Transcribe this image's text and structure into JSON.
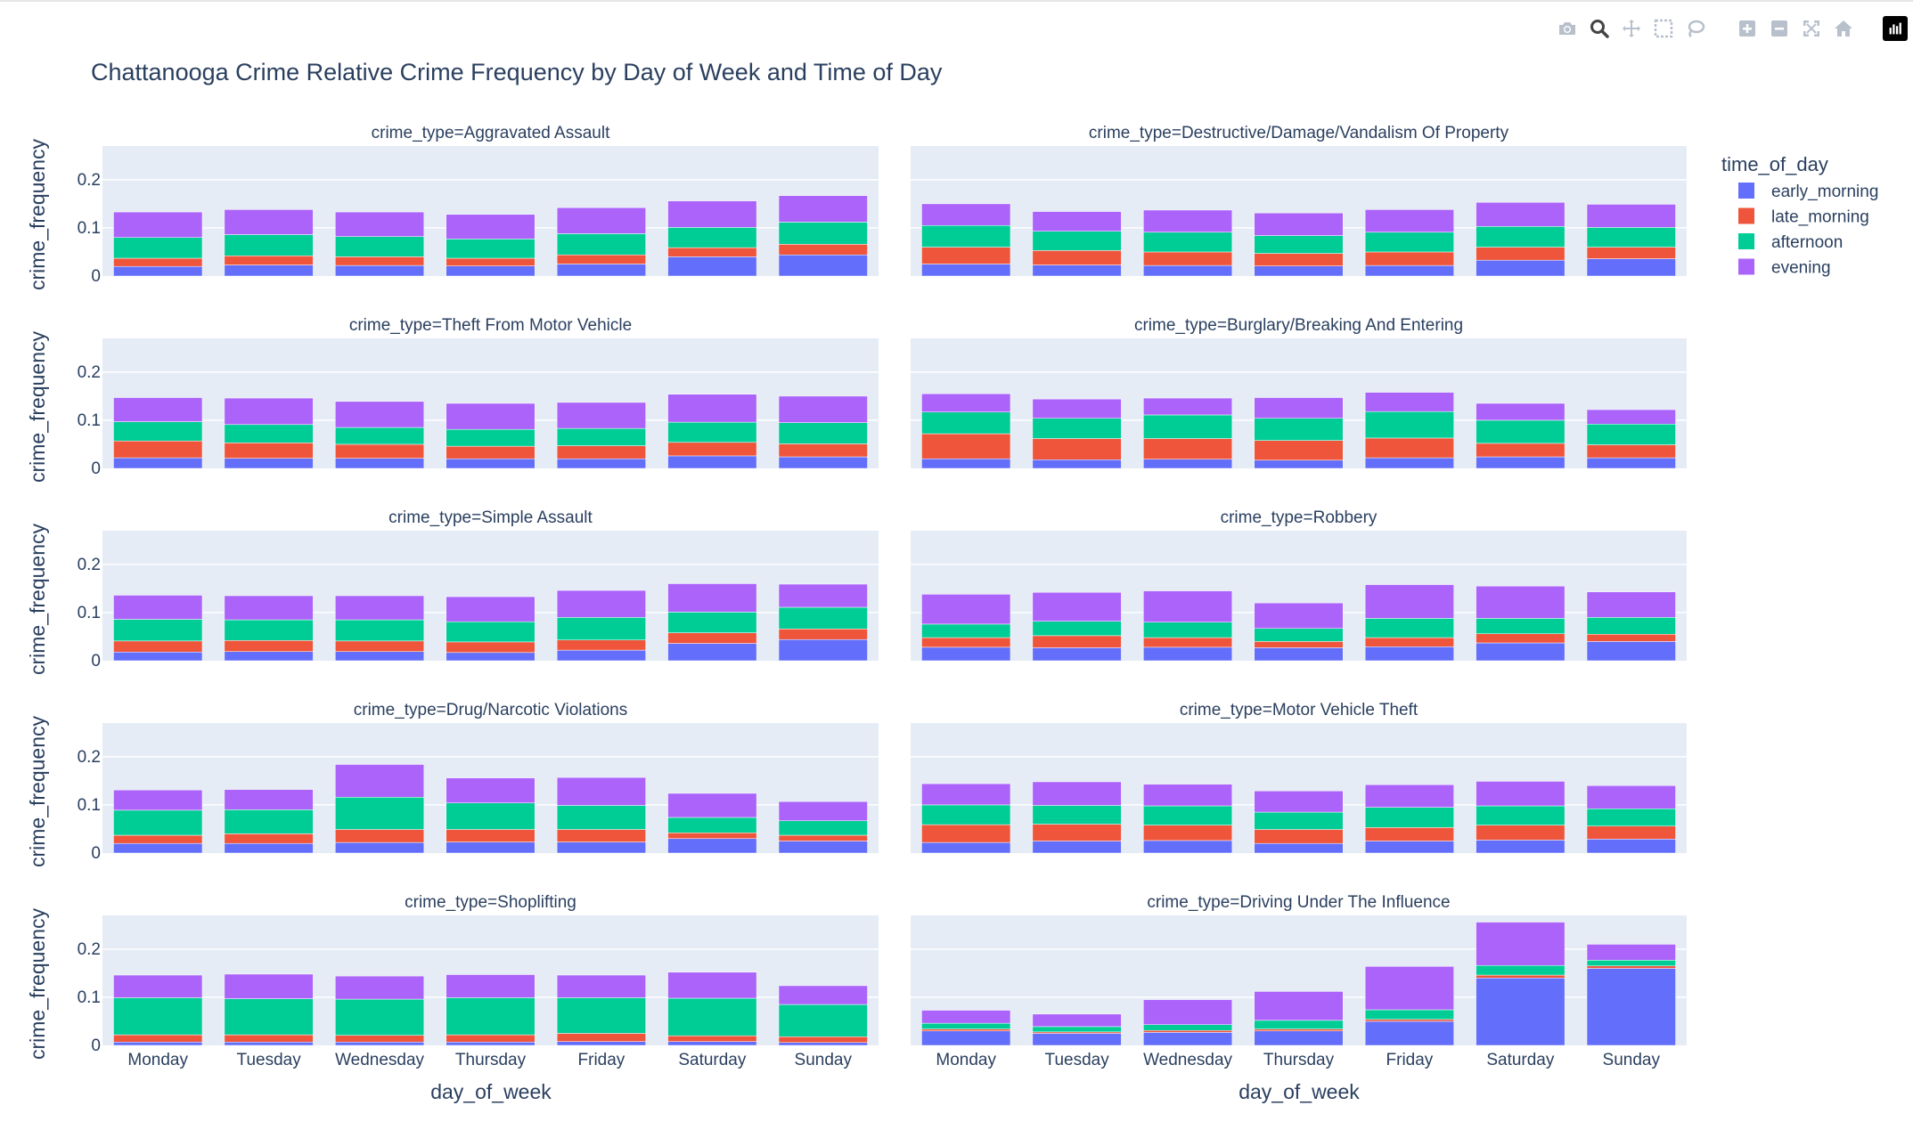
{
  "toolbar": {
    "buttons": [
      {
        "name": "camera-icon",
        "label": "Download plot as a png"
      },
      {
        "name": "zoom-icon",
        "label": "Zoom"
      },
      {
        "name": "pan-icon",
        "label": "Pan"
      },
      {
        "name": "box-select-icon",
        "label": "Box Select"
      },
      {
        "name": "lasso-select-icon",
        "label": "Lasso Select"
      },
      {
        "name": "zoom-in-icon",
        "label": "Zoom in"
      },
      {
        "name": "zoom-out-icon",
        "label": "Zoom out"
      },
      {
        "name": "autoscale-icon",
        "label": "Autoscale"
      },
      {
        "name": "reset-axes-icon",
        "label": "Reset axes"
      },
      {
        "name": "plotly-logo-icon",
        "label": "Produced with Plotly"
      }
    ],
    "active": "zoom-icon"
  },
  "chart_data": {
    "type": "bar",
    "barmode": "stack",
    "title": "Chattanooga Crime Relative Crime Frequency by Day of Week and Time of Day",
    "xlabel": "day_of_week",
    "ylabel": "crime_frequency",
    "ylim": [
      0,
      0.27
    ],
    "yticks": [
      0,
      0.1,
      0.2
    ],
    "ytick_labels": [
      "0",
      "0.1",
      "0.2"
    ],
    "grid": true,
    "plot_bgcolor": "#e5ecf6",
    "legend": {
      "title": "time_of_day",
      "position": "top-right"
    },
    "categories": [
      "Monday",
      "Tuesday",
      "Wednesday",
      "Thursday",
      "Friday",
      "Saturday",
      "Sunday"
    ],
    "series": [
      {
        "name": "early_morning",
        "color": "#636efa"
      },
      {
        "name": "late_morning",
        "color": "#ef553b"
      },
      {
        "name": "afternoon",
        "color": "#00cc96"
      },
      {
        "name": "evening",
        "color": "#ab63fa"
      }
    ],
    "facets": [
      {
        "title": "crime_type=Aggravated Assault",
        "values": [
          [
            0.02,
            0.023,
            0.022,
            0.021,
            0.025,
            0.04,
            0.044
          ],
          [
            0.017,
            0.019,
            0.018,
            0.016,
            0.019,
            0.019,
            0.022
          ],
          [
            0.043,
            0.044,
            0.042,
            0.04,
            0.044,
            0.042,
            0.046
          ],
          [
            0.053,
            0.052,
            0.051,
            0.051,
            0.054,
            0.055,
            0.055
          ]
        ]
      },
      {
        "title": "crime_type=Destructive/Damage/Vandalism Of Property",
        "values": [
          [
            0.025,
            0.023,
            0.022,
            0.021,
            0.022,
            0.033,
            0.036
          ],
          [
            0.035,
            0.03,
            0.028,
            0.026,
            0.028,
            0.027,
            0.024
          ],
          [
            0.045,
            0.04,
            0.041,
            0.037,
            0.041,
            0.043,
            0.041
          ],
          [
            0.045,
            0.041,
            0.046,
            0.047,
            0.047,
            0.05,
            0.048
          ]
        ]
      },
      {
        "title": "crime_type=Theft From Motor Vehicle",
        "values": [
          [
            0.022,
            0.021,
            0.021,
            0.02,
            0.02,
            0.026,
            0.024
          ],
          [
            0.035,
            0.032,
            0.029,
            0.026,
            0.027,
            0.028,
            0.027
          ],
          [
            0.04,
            0.038,
            0.035,
            0.035,
            0.036,
            0.042,
            0.044
          ],
          [
            0.05,
            0.055,
            0.054,
            0.054,
            0.054,
            0.058,
            0.055
          ]
        ]
      },
      {
        "title": "crime_type=Burglary/Breaking And Entering",
        "values": [
          [
            0.02,
            0.018,
            0.019,
            0.017,
            0.022,
            0.024,
            0.022
          ],
          [
            0.052,
            0.044,
            0.043,
            0.041,
            0.041,
            0.028,
            0.027
          ],
          [
            0.045,
            0.042,
            0.049,
            0.046,
            0.055,
            0.048,
            0.043
          ],
          [
            0.038,
            0.04,
            0.035,
            0.043,
            0.04,
            0.035,
            0.03
          ]
        ]
      },
      {
        "title": "crime_type=Simple Assault",
        "values": [
          [
            0.018,
            0.019,
            0.019,
            0.017,
            0.022,
            0.036,
            0.044
          ],
          [
            0.023,
            0.023,
            0.022,
            0.022,
            0.021,
            0.022,
            0.022
          ],
          [
            0.045,
            0.043,
            0.044,
            0.042,
            0.047,
            0.043,
            0.045
          ],
          [
            0.05,
            0.05,
            0.05,
            0.052,
            0.056,
            0.059,
            0.048
          ]
        ]
      },
      {
        "title": "crime_type=Robbery",
        "values": [
          [
            0.028,
            0.027,
            0.028,
            0.027,
            0.029,
            0.037,
            0.04
          ],
          [
            0.02,
            0.025,
            0.02,
            0.013,
            0.019,
            0.019,
            0.015
          ],
          [
            0.028,
            0.03,
            0.032,
            0.027,
            0.04,
            0.032,
            0.035
          ],
          [
            0.062,
            0.06,
            0.065,
            0.053,
            0.07,
            0.067,
            0.053
          ]
        ]
      },
      {
        "title": "crime_type=Drug/Narcotic Violations",
        "values": [
          [
            0.02,
            0.02,
            0.022,
            0.023,
            0.023,
            0.03,
            0.025
          ],
          [
            0.017,
            0.02,
            0.027,
            0.026,
            0.026,
            0.012,
            0.012
          ],
          [
            0.052,
            0.05,
            0.067,
            0.055,
            0.05,
            0.032,
            0.03
          ],
          [
            0.042,
            0.042,
            0.068,
            0.052,
            0.058,
            0.05,
            0.04
          ]
        ]
      },
      {
        "title": "crime_type=Motor Vehicle Theft",
        "values": [
          [
            0.022,
            0.025,
            0.026,
            0.02,
            0.025,
            0.027,
            0.029
          ],
          [
            0.037,
            0.035,
            0.032,
            0.029,
            0.028,
            0.031,
            0.027
          ],
          [
            0.041,
            0.039,
            0.04,
            0.036,
            0.042,
            0.04,
            0.036
          ],
          [
            0.044,
            0.049,
            0.045,
            0.044,
            0.047,
            0.051,
            0.048
          ]
        ]
      },
      {
        "title": "crime_type=Shoplifting",
        "values": [
          [
            0.007,
            0.007,
            0.007,
            0.007,
            0.008,
            0.008,
            0.006
          ],
          [
            0.015,
            0.015,
            0.014,
            0.015,
            0.017,
            0.012,
            0.012
          ],
          [
            0.077,
            0.075,
            0.075,
            0.077,
            0.074,
            0.078,
            0.067
          ],
          [
            0.047,
            0.051,
            0.048,
            0.048,
            0.047,
            0.054,
            0.039
          ]
        ]
      },
      {
        "title": "crime_type=Driving Under The Influence",
        "values": [
          [
            0.03,
            0.025,
            0.027,
            0.03,
            0.05,
            0.14,
            0.16
          ],
          [
            0.004,
            0.003,
            0.004,
            0.004,
            0.004,
            0.006,
            0.005
          ],
          [
            0.012,
            0.011,
            0.012,
            0.018,
            0.02,
            0.02,
            0.012
          ],
          [
            0.027,
            0.026,
            0.052,
            0.06,
            0.09,
            0.09,
            0.033
          ]
        ]
      }
    ]
  }
}
